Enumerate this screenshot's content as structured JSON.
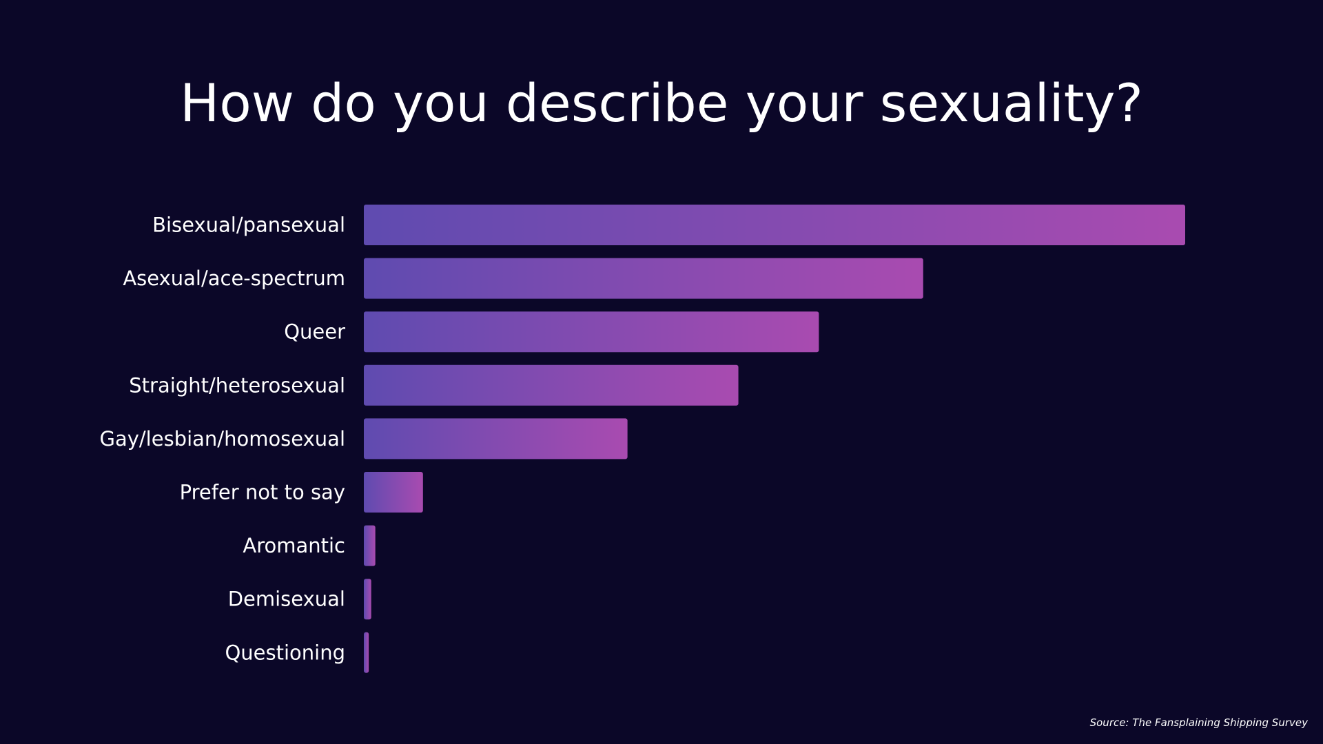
{
  "colors": {
    "background": "#0b0728",
    "bar_start": "#5f4bb0",
    "bar_end": "#a94bb0",
    "text": "#ffffff"
  },
  "source": "Source: The Fansplaining Shipping Survey",
  "chart_data": {
    "type": "bar",
    "orientation": "horizontal",
    "title": "How do you describe your sexuality?",
    "xlabel": "",
    "ylabel": "",
    "grid": false,
    "legend": "none",
    "xlim": [
      0,
      1000
    ],
    "categories": [
      "Bisexual/pansexual",
      "Asexual/ace-spectrum",
      "Queer",
      "Straight/heterosexual",
      "Gay/lesbian/homosexual",
      "Prefer not to say",
      "Aromantic",
      "Demisexual",
      "Questioning"
    ],
    "values": [
      1000,
      681,
      554,
      456,
      321,
      72,
      14,
      9,
      6
    ]
  }
}
